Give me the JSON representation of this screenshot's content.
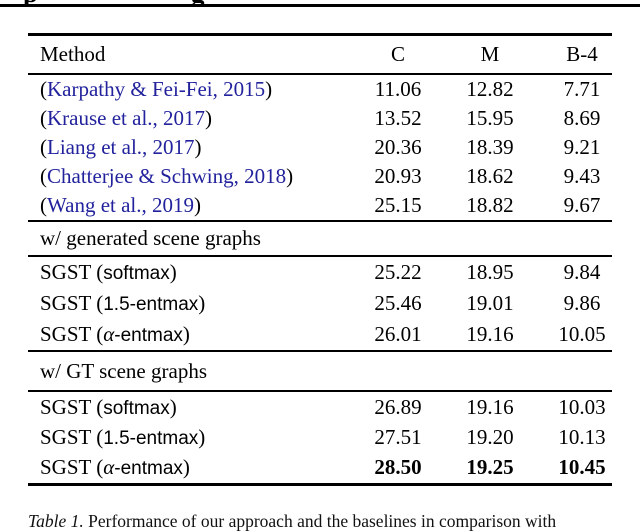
{
  "colors": {
    "citation_blue": "#22229d",
    "rule_black": "#000000",
    "background": "#ffffff"
  },
  "table": {
    "columns": [
      "Method",
      "C",
      "M",
      "B-4"
    ],
    "groups": [
      {
        "header": null,
        "rows": [
          {
            "method": [
              {
                "text": "(",
                "style": "serif"
              },
              {
                "text": "Karpathy & Fei-Fei, 2015",
                "style": "link"
              },
              {
                "text": ")",
                "style": "serif"
              }
            ],
            "values": [
              "11.06",
              "12.82",
              "7.71"
            ],
            "bold": false
          },
          {
            "method": [
              {
                "text": "(",
                "style": "serif"
              },
              {
                "text": "Krause et al., 2017",
                "style": "link"
              },
              {
                "text": ")",
                "style": "serif"
              }
            ],
            "values": [
              "13.52",
              "15.95",
              "8.69"
            ],
            "bold": false
          },
          {
            "method": [
              {
                "text": "(",
                "style": "serif"
              },
              {
                "text": "Liang et al., 2017",
                "style": "link"
              },
              {
                "text": ")",
                "style": "serif"
              }
            ],
            "values": [
              "20.36",
              "18.39",
              "9.21"
            ],
            "bold": false
          },
          {
            "method": [
              {
                "text": "(",
                "style": "serif"
              },
              {
                "text": "Chatterjee & Schwing, 2018",
                "style": "link"
              },
              {
                "text": ")",
                "style": "serif"
              }
            ],
            "values": [
              "20.93",
              "18.62",
              "9.43"
            ],
            "bold": false
          },
          {
            "method": [
              {
                "text": "(",
                "style": "serif"
              },
              {
                "text": "Wang et al., 2019",
                "style": "link"
              },
              {
                "text": ")",
                "style": "serif"
              }
            ],
            "values": [
              "25.15",
              "18.82",
              "9.67"
            ],
            "bold": false
          }
        ]
      },
      {
        "header": "w/ generated scene graphs",
        "rows": [
          {
            "method": [
              {
                "text": "SGST (",
                "style": "serif"
              },
              {
                "text": "softmax",
                "style": "sans"
              },
              {
                "text": ")",
                "style": "serif"
              }
            ],
            "values": [
              "25.22",
              "18.95",
              "9.84"
            ],
            "bold": false
          },
          {
            "method": [
              {
                "text": "SGST (",
                "style": "serif"
              },
              {
                "text": "1.5-entmax",
                "style": "sans"
              },
              {
                "text": ")",
                "style": "serif"
              }
            ],
            "values": [
              "25.46",
              "19.01",
              "9.86"
            ],
            "bold": false
          },
          {
            "method": [
              {
                "text": "SGST (",
                "style": "serif"
              },
              {
                "text": "α",
                "style": "alpha"
              },
              {
                "text": "-entmax",
                "style": "sans"
              },
              {
                "text": ")",
                "style": "serif"
              }
            ],
            "values": [
              "26.01",
              "19.16",
              "10.05"
            ],
            "bold": false
          }
        ]
      },
      {
        "header": "w/ GT scene graphs",
        "rows": [
          {
            "method": [
              {
                "text": "SGST (",
                "style": "serif"
              },
              {
                "text": "softmax",
                "style": "sans"
              },
              {
                "text": ")",
                "style": "serif"
              }
            ],
            "values": [
              "26.89",
              "19.16",
              "10.03"
            ],
            "bold": false
          },
          {
            "method": [
              {
                "text": "SGST (",
                "style": "serif"
              },
              {
                "text": "1.5-entmax",
                "style": "sans"
              },
              {
                "text": ")",
                "style": "serif"
              }
            ],
            "values": [
              "27.51",
              "19.20",
              "10.13"
            ],
            "bold": false
          },
          {
            "method": [
              {
                "text": "SGST (",
                "style": "serif"
              },
              {
                "text": "α",
                "style": "alpha"
              },
              {
                "text": "-entmax",
                "style": "sans"
              },
              {
                "text": ")",
                "style": "serif"
              }
            ],
            "values": [
              "28.50",
              "19.25",
              "10.45"
            ],
            "bold": true
          }
        ]
      }
    ]
  },
  "caption": {
    "label": "Table 1.",
    "text": "Performance of our approach and the baselines in comparison with"
  }
}
